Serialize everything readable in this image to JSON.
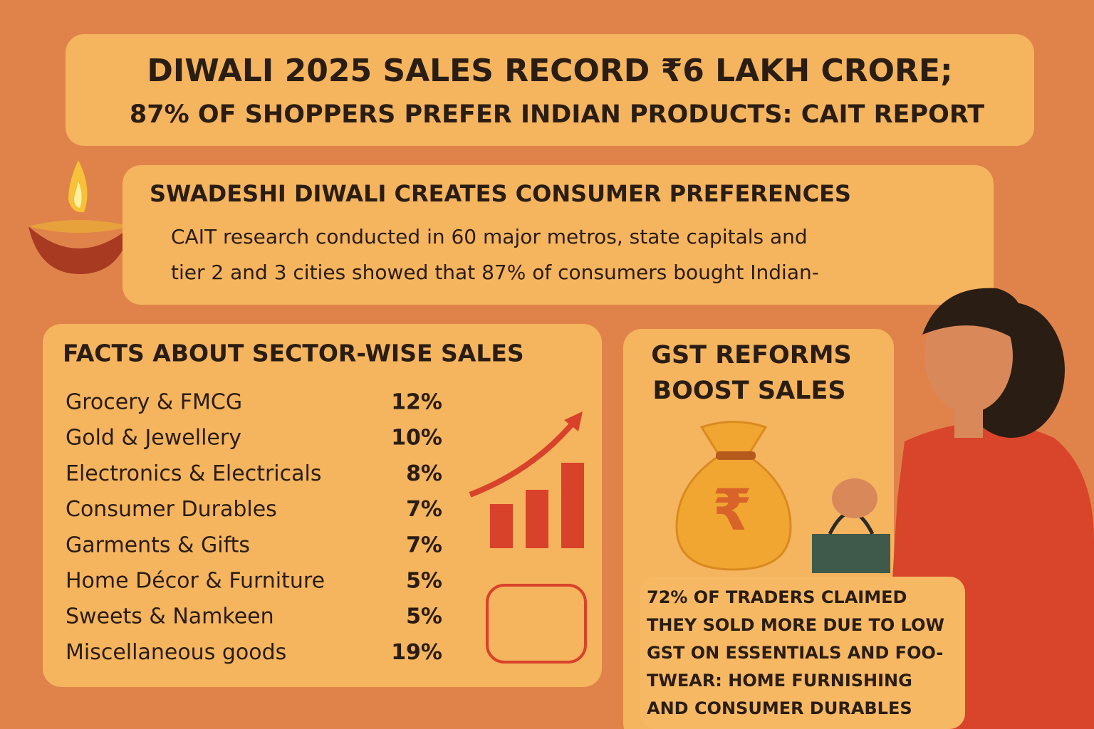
{
  "header": {
    "title_line1": "DIWALI 2025 SALES RECORD ₹6 LAKH CRORE;",
    "title_line2": "87% OF SHOPPERS PREFER INDIAN PRODUCTS: CAIT REPORT"
  },
  "swadeshi": {
    "heading": "SWADESHI DIWALI CREATES CONSUMER PREFERENCES",
    "text_lines": [
      "CAIT research conducted in 60 major metros, state capitals and",
      "tier 2 and 3 cities showed that 87% of consumers bought Indian-"
    ]
  },
  "facts": {
    "heading": "FACTS ABOUT SECTOR-WISE SALES",
    "rows": [
      [
        "Grocery & FMCG",
        "12%"
      ],
      [
        "Gold & Jewellery",
        "10%"
      ],
      [
        "Electronics & Electricals",
        "8%"
      ],
      [
        "Consumer Durables",
        "7%"
      ],
      [
        "Garments & Gifts",
        "7%"
      ],
      [
        "Home Décor & Furniture",
        "5%"
      ],
      [
        "Sweets & Namkeen",
        "5%"
      ],
      [
        "Miscellaneous goods",
        "19%"
      ]
    ]
  },
  "gst": {
    "heading_lines": [
      "GST REFORMS",
      "BOOST SALES"
    ],
    "text_lines": [
      "72% OF TRADERS CLAIMED",
      "THEY SOLD MORE DUE TO LOW",
      "GST ON ESSENTIALS AND FOO-",
      "TWEAR: HOME FURNISHING",
      "AND CONSUMER DURABLES"
    ]
  }
}
